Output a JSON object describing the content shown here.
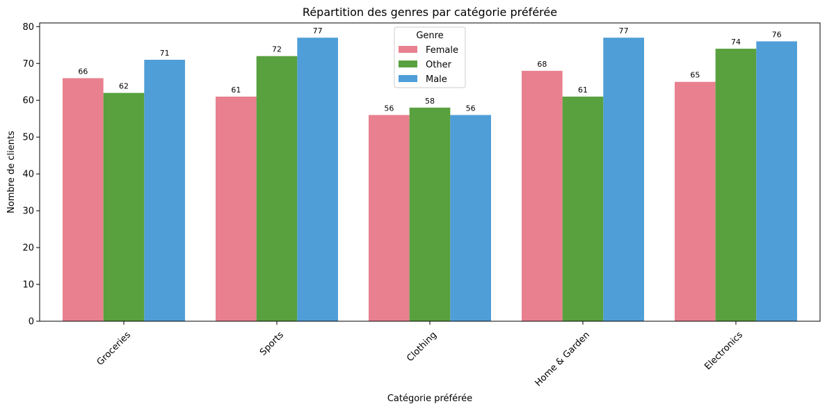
{
  "chart_data": {
    "type": "bar",
    "title": "Répartition des genres par catégorie préférée",
    "xlabel": "Catégorie préférée",
    "ylabel": "Nombre de clients",
    "categories": [
      "Groceries",
      "Sports",
      "Clothing",
      "Home & Garden",
      "Electronics"
    ],
    "series": [
      {
        "name": "Female",
        "values": [
          66,
          61,
          56,
          68,
          65
        ],
        "color": "#e8808f"
      },
      {
        "name": "Other",
        "values": [
          62,
          72,
          58,
          61,
          74
        ],
        "color": "#58a13e"
      },
      {
        "name": "Male",
        "values": [
          71,
          77,
          56,
          77,
          76
        ],
        "color": "#4f9ed8"
      }
    ],
    "ylim": [
      0,
      81
    ],
    "yticks": [
      0,
      10,
      20,
      30,
      40,
      50,
      60,
      70,
      80
    ],
    "legend": {
      "title": "Genre",
      "placement": "upper-center"
    },
    "grid": false
  }
}
